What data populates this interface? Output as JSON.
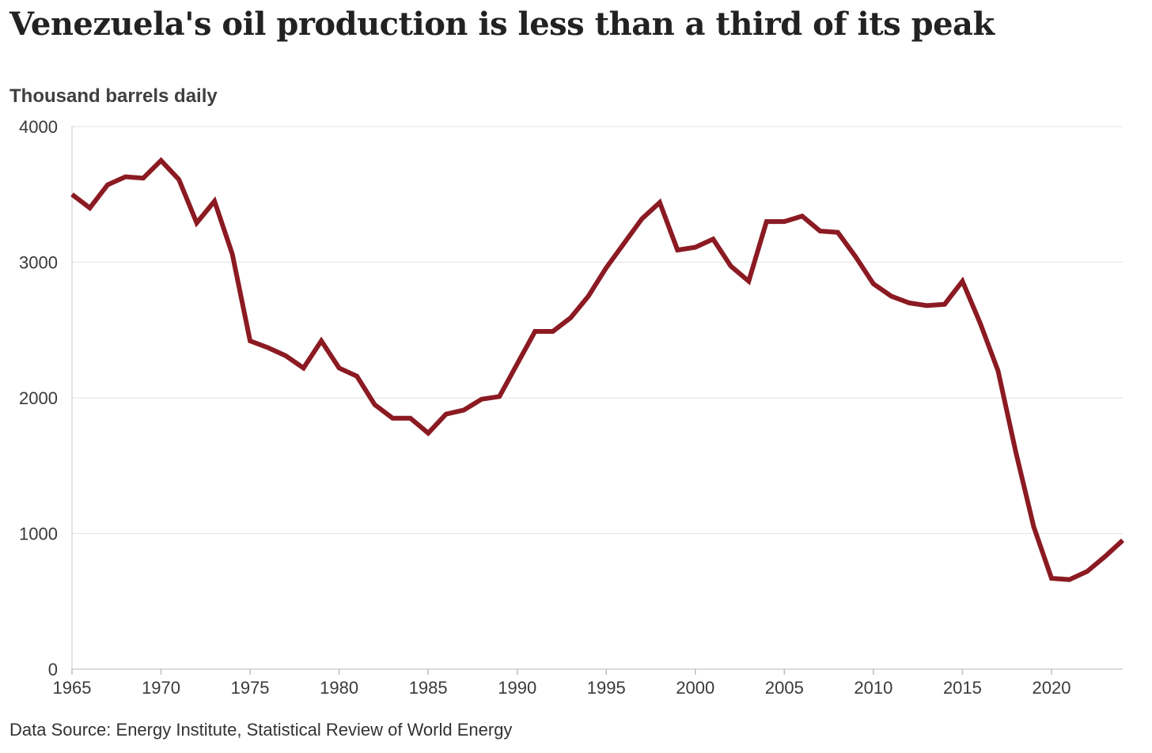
{
  "chart_data": {
    "type": "line",
    "title": "Venezuela's oil production is less than a third of its peak",
    "ylabel": "Thousand barrels daily",
    "xlabel": "",
    "source": "Data Source: Energy Institute, Statistical Review of World Energy",
    "xlim": [
      1965,
      2024
    ],
    "ylim": [
      0,
      4000
    ],
    "x_ticks": [
      1965,
      1970,
      1975,
      1980,
      1985,
      1990,
      1995,
      2000,
      2005,
      2010,
      2015,
      2020
    ],
    "y_ticks": [
      0,
      1000,
      2000,
      3000,
      4000
    ],
    "grid": true,
    "line_color": "#8b1a22",
    "series": [
      {
        "name": "Venezuela oil production",
        "x": [
          1965,
          1966,
          1967,
          1968,
          1969,
          1970,
          1971,
          1972,
          1973,
          1974,
          1975,
          1976,
          1977,
          1978,
          1979,
          1980,
          1981,
          1982,
          1983,
          1984,
          1985,
          1986,
          1987,
          1988,
          1989,
          1990,
          1991,
          1992,
          1993,
          1994,
          1995,
          1996,
          1997,
          1998,
          1999,
          2000,
          2001,
          2002,
          2003,
          2004,
          2005,
          2006,
          2007,
          2008,
          2009,
          2010,
          2011,
          2012,
          2013,
          2014,
          2015,
          2016,
          2017,
          2018,
          2019,
          2020,
          2021,
          2022,
          2023,
          2024
        ],
        "values": [
          3500,
          3400,
          3570,
          3630,
          3620,
          3750,
          3610,
          3290,
          3450,
          3060,
          2420,
          2370,
          2310,
          2220,
          2420,
          2220,
          2160,
          1950,
          1850,
          1850,
          1740,
          1880,
          1910,
          1990,
          2010,
          2250,
          2490,
          2490,
          2590,
          2750,
          2960,
          3140,
          3320,
          3440,
          3090,
          3110,
          3170,
          2970,
          2860,
          3300,
          3300,
          3340,
          3230,
          3220,
          3040,
          2840,
          2750,
          2700,
          2680,
          2690,
          2860,
          2550,
          2200,
          1600,
          1050,
          670,
          660,
          720,
          830,
          950
        ]
      }
    ]
  }
}
